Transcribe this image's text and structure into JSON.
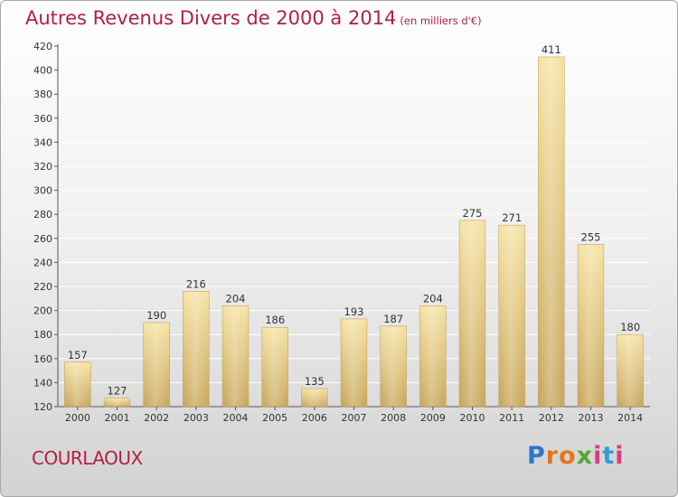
{
  "title": "Autres Revenus Divers de 2000 à 2014",
  "subtitle": "(en milliers d'€)",
  "commune": "COURLAOUX",
  "logo": {
    "letters": [
      "P",
      "r",
      "o",
      "x",
      "i",
      "t",
      "i"
    ],
    "colors": [
      "#2f74c8",
      "#e9741c",
      "#e9741c",
      "#52a834",
      "#d93b84",
      "#2f9fd8",
      "#d93b84"
    ]
  },
  "chart_data": {
    "type": "bar",
    "title": "Autres Revenus Divers de 2000 à 2014",
    "subtitle": "(en milliers d'€)",
    "categories": [
      "2000",
      "2001",
      "2002",
      "2003",
      "2004",
      "2005",
      "2006",
      "2007",
      "2008",
      "2009",
      "2010",
      "2011",
      "2012",
      "2013",
      "2014"
    ],
    "values": [
      157,
      127,
      190,
      216,
      204,
      186,
      135,
      193,
      187,
      204,
      275,
      271,
      411,
      255,
      180
    ],
    "ylim": [
      120,
      420
    ],
    "yticks": [
      120,
      140,
      160,
      180,
      200,
      220,
      240,
      260,
      280,
      300,
      320,
      340,
      360,
      380,
      400,
      420
    ],
    "xlabel": "",
    "ylabel": "",
    "grid": true,
    "bar_color": "#f2d690"
  }
}
